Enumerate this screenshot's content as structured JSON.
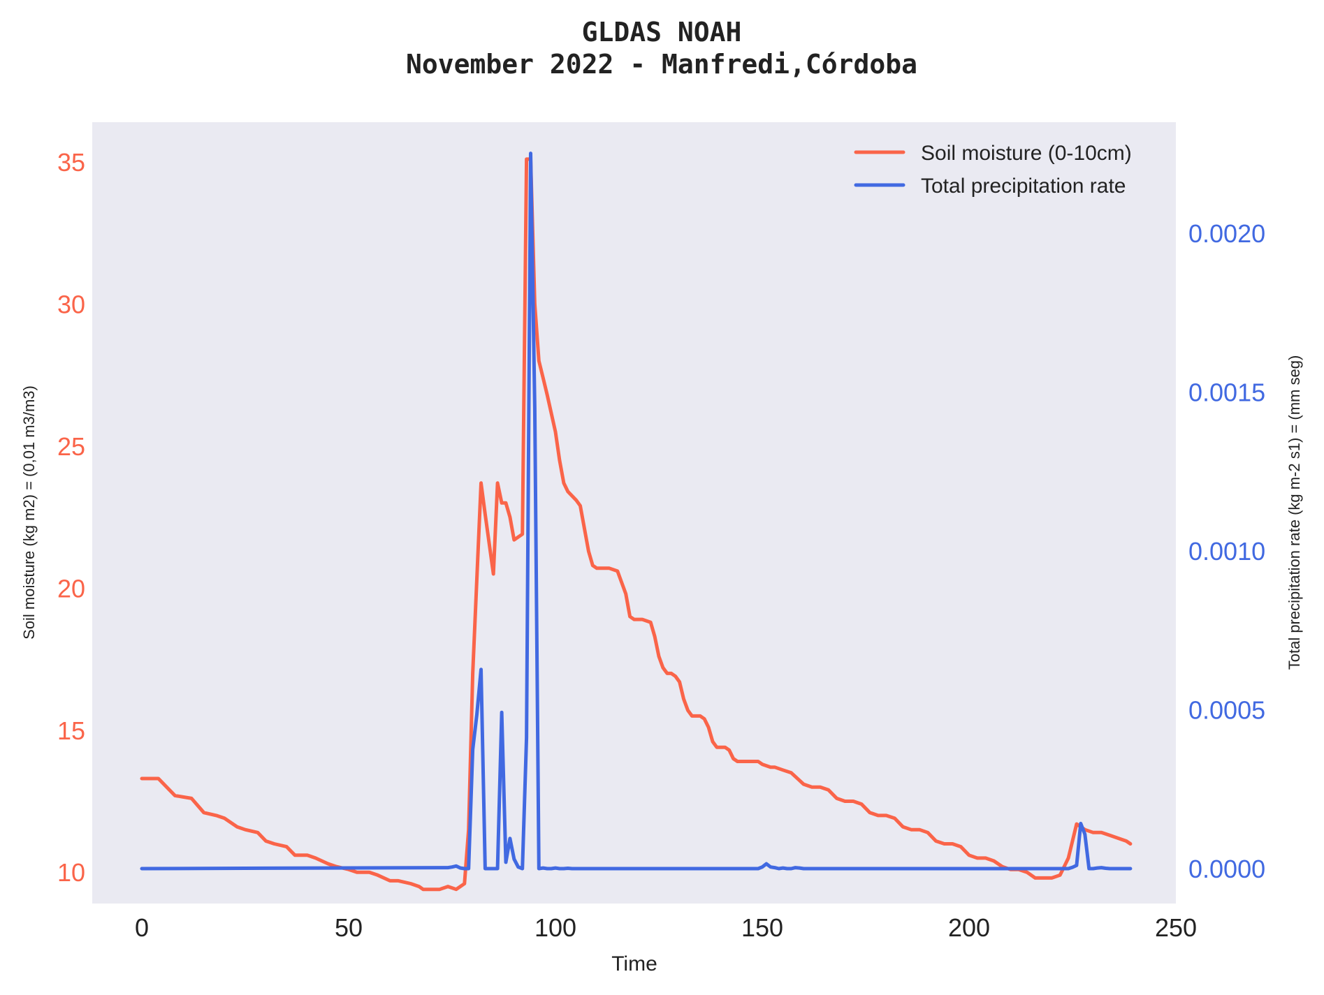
{
  "chart_data": {
    "type": "line",
    "title_line1": "GLDAS NOAH",
    "title_line2": "November 2022 - Manfredi,Córdoba",
    "xlabel": "Time",
    "ylabel_left": "Soil moisture (kg m2) = (0,01 m3/m3)",
    "ylabel_right": "Total precipitation rate (kg m-2 s1) = (mm seg)",
    "xlim": [
      -12,
      250
    ],
    "ylim_left": [
      8.9,
      36.4
    ],
    "ylim_right": [
      -0.00011,
      0.00235
    ],
    "xticks": [
      0,
      50,
      100,
      150,
      200,
      250
    ],
    "xtick_labels": [
      "0",
      "50",
      "100",
      "150",
      "200",
      "250"
    ],
    "yticks_left": [
      10,
      15,
      20,
      25,
      30,
      35
    ],
    "ytick_labels_left": [
      "10",
      "15",
      "20",
      "25",
      "30",
      "35"
    ],
    "yticks_right": [
      0.0,
      0.0005,
      0.001,
      0.0015,
      0.002
    ],
    "ytick_labels_right": [
      "0.0000",
      "0.0005",
      "0.0010",
      "0.0015",
      "0.0020"
    ],
    "colors": {
      "soil": "#fa6449",
      "precip": "#4169e1",
      "plot_bg": "#eaeaf2"
    },
    "legend_position": "top-right",
    "series": [
      {
        "name": "Soil moisture (0-10cm)",
        "axis": "left",
        "x": [
          0,
          4,
          6,
          8,
          12,
          15,
          18,
          20,
          23,
          25,
          28,
          30,
          32,
          35,
          37,
          40,
          42,
          45,
          47,
          50,
          52,
          55,
          57,
          60,
          62,
          65,
          67,
          68,
          70,
          72,
          74,
          76,
          78,
          79,
          80,
          82,
          83,
          85,
          86,
          87,
          88,
          89,
          90,
          92,
          93,
          94,
          95,
          96,
          97,
          98,
          100,
          101,
          102,
          103,
          105,
          106,
          108,
          109,
          110,
          111,
          113,
          115,
          117,
          118,
          119,
          120,
          121,
          123,
          124,
          125,
          126,
          127,
          128,
          129,
          130,
          131,
          132,
          133,
          134,
          135,
          136,
          137,
          138,
          139,
          140,
          141,
          142,
          143,
          144,
          145,
          147,
          149,
          150,
          152,
          153,
          155,
          157,
          160,
          162,
          164,
          166,
          168,
          170,
          172,
          174,
          176,
          178,
          180,
          182,
          184,
          186,
          188,
          190,
          192,
          194,
          196,
          198,
          200,
          202,
          204,
          206,
          208,
          210,
          212,
          214,
          216,
          218,
          220,
          222,
          224,
          226,
          227,
          228,
          230,
          232,
          234,
          236,
          238,
          239
        ],
        "values": [
          13.3,
          13.3,
          13.0,
          12.7,
          12.6,
          12.1,
          12.0,
          11.9,
          11.6,
          11.5,
          11.4,
          11.1,
          11.0,
          10.9,
          10.6,
          10.6,
          10.5,
          10.3,
          10.2,
          10.1,
          10.0,
          10.0,
          9.9,
          9.7,
          9.7,
          9.6,
          9.5,
          9.4,
          9.4,
          9.4,
          9.5,
          9.4,
          9.6,
          11.5,
          17.0,
          23.7,
          22.6,
          20.5,
          23.7,
          23.0,
          23.0,
          22.5,
          21.7,
          21.9,
          35.1,
          35.1,
          30.0,
          28.0,
          27.4,
          26.8,
          25.5,
          24.5,
          23.7,
          23.4,
          23.1,
          22.9,
          21.3,
          20.8,
          20.7,
          20.7,
          20.7,
          20.6,
          19.8,
          19.0,
          18.9,
          18.9,
          18.9,
          18.8,
          18.3,
          17.6,
          17.2,
          17.0,
          17.0,
          16.9,
          16.7,
          16.1,
          15.7,
          15.5,
          15.5,
          15.5,
          15.4,
          15.1,
          14.6,
          14.4,
          14.4,
          14.4,
          14.3,
          14.0,
          13.9,
          13.9,
          13.9,
          13.9,
          13.8,
          13.7,
          13.7,
          13.6,
          13.5,
          13.1,
          13.0,
          13.0,
          12.9,
          12.6,
          12.5,
          12.5,
          12.4,
          12.1,
          12.0,
          12.0,
          11.9,
          11.6,
          11.5,
          11.5,
          11.4,
          11.1,
          11.0,
          11.0,
          10.9,
          10.6,
          10.5,
          10.5,
          10.4,
          10.2,
          10.1,
          10.1,
          10.0,
          9.8,
          9.8,
          9.8,
          9.9,
          10.5,
          11.7,
          11.6,
          11.5,
          11.4,
          11.4,
          11.3,
          11.2,
          11.1,
          11.0
        ]
      },
      {
        "name": "Total precipitation rate",
        "axis": "right",
        "x": [
          0,
          74,
          75,
          76,
          77,
          78,
          79,
          80,
          81,
          82,
          83,
          84,
          85,
          86,
          87,
          88,
          89,
          90,
          91,
          92,
          93,
          94,
          95,
          96,
          97,
          98,
          99,
          100,
          101,
          102,
          103,
          104,
          149,
          150,
          151,
          152,
          153,
          154,
          155,
          156,
          157,
          158,
          159,
          160,
          224,
          225,
          226,
          227,
          228,
          229,
          230,
          231,
          232,
          233,
          234,
          235,
          236,
          237,
          238,
          239
        ],
        "values": [
          0.0,
          3e-06,
          5e-06,
          8e-06,
          2e-06,
          0.0,
          0.0,
          0.000375,
          0.000485,
          0.000627,
          0.0,
          0.0,
          0.0,
          0.0,
          0.000492,
          2e-05,
          9.5e-05,
          3e-05,
          5e-06,
          0.0,
          0.000412,
          0.002252,
          0.00145,
          0.0,
          2e-06,
          0.0,
          0.0,
          2e-06,
          0.0,
          0.0,
          1e-06,
          0.0,
          0.0,
          5e-06,
          1.5e-05,
          5e-06,
          3e-06,
          0.0,
          2e-06,
          0.0,
          0.0,
          3e-06,
          2e-06,
          0.0,
          0.0,
          4e-06,
          1e-05,
          0.000142,
          0.000108,
          0.0,
          0.0,
          2e-06,
          3e-06,
          1e-06,
          0.0,
          0.0,
          0.0,
          0.0,
          0.0,
          0.0
        ]
      }
    ]
  }
}
